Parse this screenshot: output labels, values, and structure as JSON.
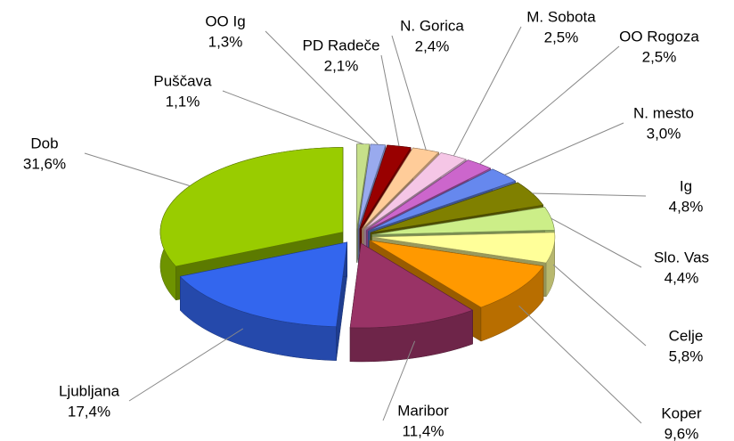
{
  "chart_data": {
    "type": "pie",
    "categories": [
      "Puščava",
      "OO Ig",
      "PD Radeče",
      "N. Gorica",
      "M. Sobota",
      "OO Rogoza",
      "N. mesto",
      "Ig",
      "Slo. Vas",
      "Celje",
      "Koper",
      "Maribor",
      "Ljubljana",
      "Dob"
    ],
    "values": [
      1.1,
      1.3,
      2.1,
      2.4,
      2.5,
      2.5,
      3.0,
      4.8,
      4.4,
      5.8,
      9.6,
      11.4,
      17.4,
      31.6
    ],
    "value_labels": [
      "1,1%",
      "1,3%",
      "2,1%",
      "2,4%",
      "2,5%",
      "2,5%",
      "3,0%",
      "4,8%",
      "4,4%",
      "5,8%",
      "9,6%",
      "11,4%",
      "17,4%",
      "31,6%"
    ],
    "colors": [
      "#c6e08a",
      "#99aaee",
      "#990000",
      "#ffcc99",
      "#f5c6e6",
      "#cc66cc",
      "#6688ee",
      "#808000",
      "#ccee88",
      "#ffff99",
      "#ff9900",
      "#993366",
      "#3366ee",
      "#99cc00"
    ]
  }
}
